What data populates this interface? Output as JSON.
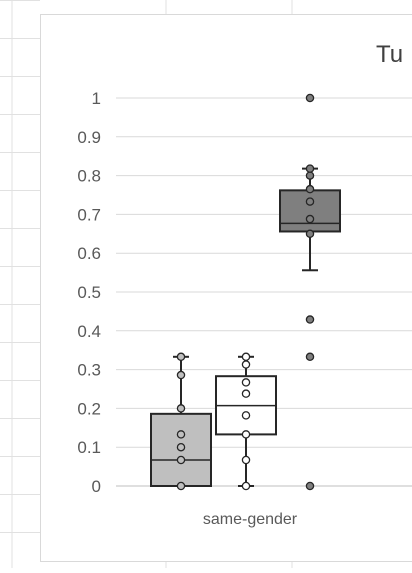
{
  "chart_data": {
    "type": "box",
    "title": "Tu",
    "categories": [
      "same-gender"
    ],
    "ylim": [
      0,
      1
    ],
    "yticks": [
      "0",
      "0.1",
      "0.2",
      "0.3",
      "0.4",
      "0.5",
      "0.6",
      "0.7",
      "0.8",
      "0.9",
      "1"
    ],
    "grid": true,
    "series": [
      {
        "color": "#bfbfbf",
        "box": {
          "min": 0,
          "q1": 0,
          "median": 0.067,
          "q3": 0.186,
          "max": 0.333
        },
        "points": [
          0,
          0.067,
          0.1,
          0.133,
          0.2,
          0.286,
          0.333
        ]
      },
      {
        "color": "#ffffff",
        "box": {
          "min": 0,
          "q1": 0.133,
          "median": 0.207,
          "q3": 0.283,
          "max": 0.333
        },
        "points": [
          0,
          0.067,
          0.133,
          0.182,
          0.238,
          0.267,
          0.313,
          0.333
        ]
      },
      {
        "color": "#7f7f7f",
        "box": {
          "min": 0.556,
          "q1": 0.656,
          "median": 0.677,
          "q3": 0.762,
          "max": 0.818
        },
        "points": [
          0,
          0.333,
          0.429,
          0.65,
          0.688,
          0.733,
          0.765,
          0.8,
          0.818,
          1
        ]
      }
    ]
  }
}
